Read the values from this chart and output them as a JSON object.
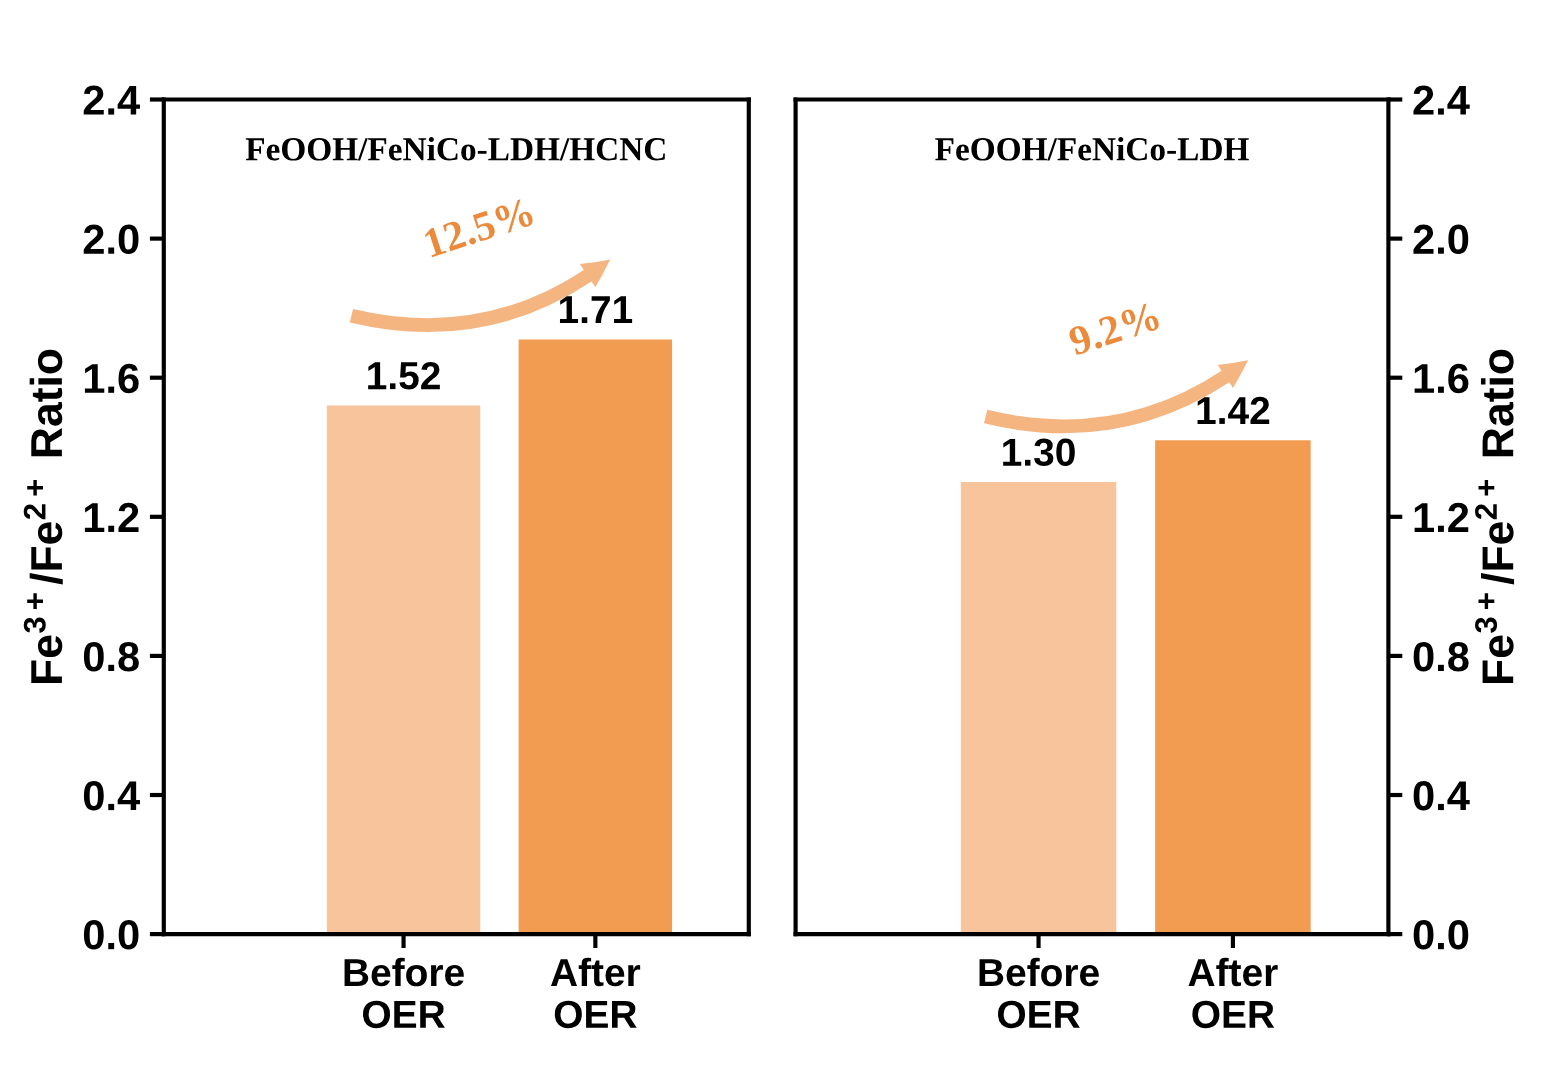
{
  "chart_data": [
    {
      "type": "bar",
      "title": "FeOOH/FeNiCo-LDH/HCNC",
      "ylabel": "Fe$^{3+}$/Fe$^{2+}$ Ratio",
      "categories": [
        "Before\nOER",
        "After\nOER"
      ],
      "values": [
        1.52,
        1.71
      ],
      "colors": [
        "#f8c49c",
        "#f29c52"
      ],
      "ylim": [
        0,
        2.4
      ],
      "yticks": [
        {
          "value": 0,
          "label": "0.0"
        },
        0.4,
        0.8,
        1.2,
        1.6,
        {
          "value": 2,
          "label": "2.0"
        },
        2.4
      ],
      "value_labels": [
        "1.52",
        "1.71"
      ],
      "annotations": [
        "12.5%"
      ],
      "grid": false,
      "legend": false
    },
    {
      "type": "bar",
      "title": "FeOOH/FeNiCo-LDH",
      "y2label": "Fe$^{3+}$/Fe$^{2+}$ Ratio",
      "categories": [
        "Before\nOER",
        "After\nOER"
      ],
      "series": [
        {
          "axis": "y2",
          "values": [
            1.3,
            1.42
          ]
        }
      ],
      "colors": [
        "#f8c49c",
        "#f29c52"
      ],
      "y2lim": [
        0,
        2.4
      ],
      "y2ticks": [
        {
          "value": 0,
          "label": "0.0"
        },
        0.4,
        0.8,
        1.2,
        1.6,
        {
          "value": 2,
          "label": "2.0"
        },
        2.4
      ],
      "value_labels": [
        "1.30",
        "1.42"
      ],
      "annotations": [
        "9.2%"
      ],
      "grid": false,
      "legend": false
    }
  ]
}
